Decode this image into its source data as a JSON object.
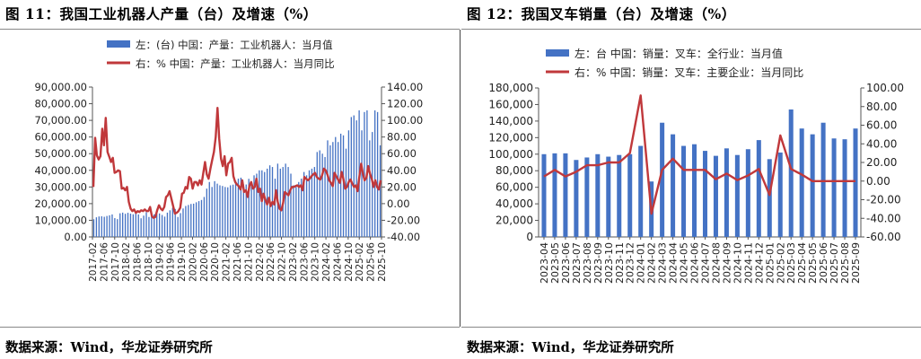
{
  "charts": [
    {
      "figure_title": "图 11：我国工业机器人产量（台）及增速（%）",
      "source": "数据来源：Wind，华龙证券研究所"
    },
    {
      "figure_title": "图 12：我国叉车销量（台）及增速（%）",
      "source": "数据来源：Wind，华龙证券研究所"
    }
  ],
  "colors": {
    "bar": "#4472C4",
    "line": "#C0383B",
    "axis": "#555555"
  },
  "chart_data": [
    {
      "type": "bar",
      "combo": "bar+line",
      "title": "",
      "x_tick_labels": [
        "2017-02",
        "2017-06",
        "2017-10",
        "2018-02",
        "2018-06",
        "2018-10",
        "2019-02",
        "2019-06",
        "2019-10",
        "2020-02",
        "2020-06",
        "2020-10",
        "2021-02",
        "2021-06",
        "2021-10",
        "2022-02",
        "2022-06",
        "2022-10",
        "2023-02",
        "2023-06",
        "2023-10",
        "2024-02",
        "2024-06",
        "2024-10",
        "2025-02",
        "2025-06",
        "2025-10"
      ],
      "x_start": "2017-02",
      "x_end": "2025-10",
      "left_axis": {
        "ylim": [
          0,
          90000
        ],
        "tick_labels": [
          "0.00",
          "10,000.00",
          "20,000.00",
          "30,000.00",
          "40,000.00",
          "50,000.00",
          "60,000.00",
          "70,000.00",
          "80,000.00",
          "90,000.00"
        ]
      },
      "right_axis": {
        "ylim": [
          -40,
          140
        ],
        "tick_labels": [
          "-40.00",
          "-20.00",
          "0.00",
          "20.00",
          "40.00",
          "60.00",
          "80.00",
          "100.00",
          "120.00",
          "140.00"
        ]
      },
      "legend_position": "top",
      "series": [
        {
          "name": "左：(台) 中国：产量：工业机器人：当月值",
          "type": "bar",
          "axis": "left",
          "values": [
            10600,
            11800,
            12300,
            12400,
            12100,
            12600,
            13000,
            13500,
            11300,
            10700,
            14200,
            14600,
            13900,
            14500,
            14000,
            13600,
            14800,
            13500,
            11200,
            12800,
            14800,
            12000,
            12600,
            13600,
            13800,
            14100,
            13200,
            12200,
            14600,
            16000,
            17500,
            16800,
            12000,
            14300,
            17100,
            18600,
            19200,
            19800,
            20000,
            20800,
            21500,
            22200,
            24000,
            29000,
            33000,
            30000,
            33500,
            32000,
            31000,
            30600,
            30000,
            29800,
            31000,
            31400,
            33700,
            35000,
            35600,
            31500,
            31500,
            34900,
            33000,
            37000,
            38000,
            40000,
            40000,
            39000,
            41000,
            43000,
            42000,
            35000,
            44000,
            41000,
            42000,
            44000,
            42000,
            38000,
            31000,
            30000,
            33000,
            35000,
            39000,
            37000,
            40000,
            41000,
            42000,
            51000,
            52000,
            50000,
            48000,
            58000,
            55000,
            57000,
            60000,
            57000,
            62000,
            61000,
            53000,
            64000,
            72000,
            73000,
            70000,
            76000,
            64000,
            75000,
            76000,
            58000,
            63000,
            76000,
            75000,
            55000
          ]
        },
        {
          "name": "右：% 中国：产量：工业机器人：当月同比",
          "type": "line",
          "axis": "right",
          "values": [
            20,
            79,
            58,
            53,
            57,
            90,
            70,
            103,
            62,
            56,
            50,
            55,
            37,
            38,
            40,
            39,
            18,
            19,
            16,
            20,
            2,
            -6,
            -9,
            -7,
            -11,
            -9,
            -10,
            -8,
            -9,
            -7,
            -9,
            -9,
            -4,
            -15,
            -17,
            -16,
            -8,
            -2,
            -6,
            -8,
            -4,
            8,
            10,
            15,
            6,
            -3,
            -12,
            -11,
            -9,
            -5,
            12,
            13,
            20,
            18,
            32,
            30,
            18,
            26,
            26,
            22,
            28,
            23,
            37,
            50,
            35,
            30,
            42,
            52,
            62,
            80,
            115,
            78,
            54,
            45,
            57,
            34,
            48,
            50,
            55,
            33,
            26,
            23,
            21,
            17,
            28,
            14,
            16,
            8,
            21,
            26,
            18,
            20,
            30,
            14,
            18,
            3,
            12,
            5,
            -1,
            7,
            -3,
            2,
            -1,
            16,
            2,
            -6,
            -8,
            1,
            14,
            12,
            10,
            16,
            20,
            20,
            21,
            22,
            20,
            22,
            16,
            32,
            30,
            28,
            30,
            33,
            35,
            37,
            32,
            30,
            29,
            34,
            42,
            40,
            35,
            28,
            25,
            21,
            37,
            33,
            29,
            25,
            38,
            30,
            18,
            20,
            26,
            29,
            24,
            20,
            22,
            15,
            32,
            48,
            36,
            28,
            31,
            45,
            36,
            30,
            20,
            28,
            20,
            17,
            28
          ]
        }
      ]
    },
    {
      "type": "bar",
      "combo": "bar+line",
      "title": "",
      "categories": [
        "2023-04",
        "2023-05",
        "2023-06",
        "2023-07",
        "2023-08",
        "2023-09",
        "2023-10",
        "2023-11",
        "2023-12",
        "2024-01",
        "2024-02",
        "2024-03",
        "2024-04",
        "2024-05",
        "2024-06",
        "2024-07",
        "2024-08",
        "2024-09",
        "2024-10",
        "2024-11",
        "2024-12",
        "2025-01",
        "2025-02",
        "2025-03",
        "2025-04",
        "2025-05",
        "2025-06",
        "2025-07",
        "2025-08",
        "2025-09"
      ],
      "left_axis": {
        "ylim": [
          0,
          180000
        ],
        "tick_labels": [
          "0",
          "20,000",
          "40,000",
          "60,000",
          "80,000",
          "100,000",
          "120,000",
          "140,000",
          "160,000",
          "180,000"
        ]
      },
      "right_axis": {
        "ylim": [
          -60,
          100
        ],
        "tick_labels": [
          "-60.00",
          "-40.00",
          "-20.00",
          "0.00",
          "20.00",
          "40.00",
          "60.00",
          "80.00",
          "100.00"
        ]
      },
      "legend_position": "top",
      "series": [
        {
          "name": "左：台 中国：销量：叉车：全行业：当月值",
          "type": "bar",
          "axis": "left",
          "values": [
            100000,
            101000,
            101000,
            93000,
            96000,
            100000,
            97000,
            99000,
            100000,
            110000,
            67000,
            138000,
            124000,
            110000,
            112000,
            104000,
            98000,
            107000,
            99000,
            106000,
            117000,
            94000,
            102000,
            154000,
            131000,
            124000,
            138000,
            119000,
            118000,
            131000
          ]
        },
        {
          "name": "右：% 中国：销量：叉车：主要企业：当月同比",
          "type": "line",
          "axis": "right",
          "values": [
            5,
            12,
            5,
            10,
            17,
            17,
            20,
            20,
            30,
            92,
            -35,
            12,
            24,
            12,
            12,
            12,
            2,
            8,
            1,
            6,
            13,
            -15,
            49,
            13,
            7,
            0,
            0,
            0,
            0,
            0
          ]
        }
      ]
    }
  ]
}
